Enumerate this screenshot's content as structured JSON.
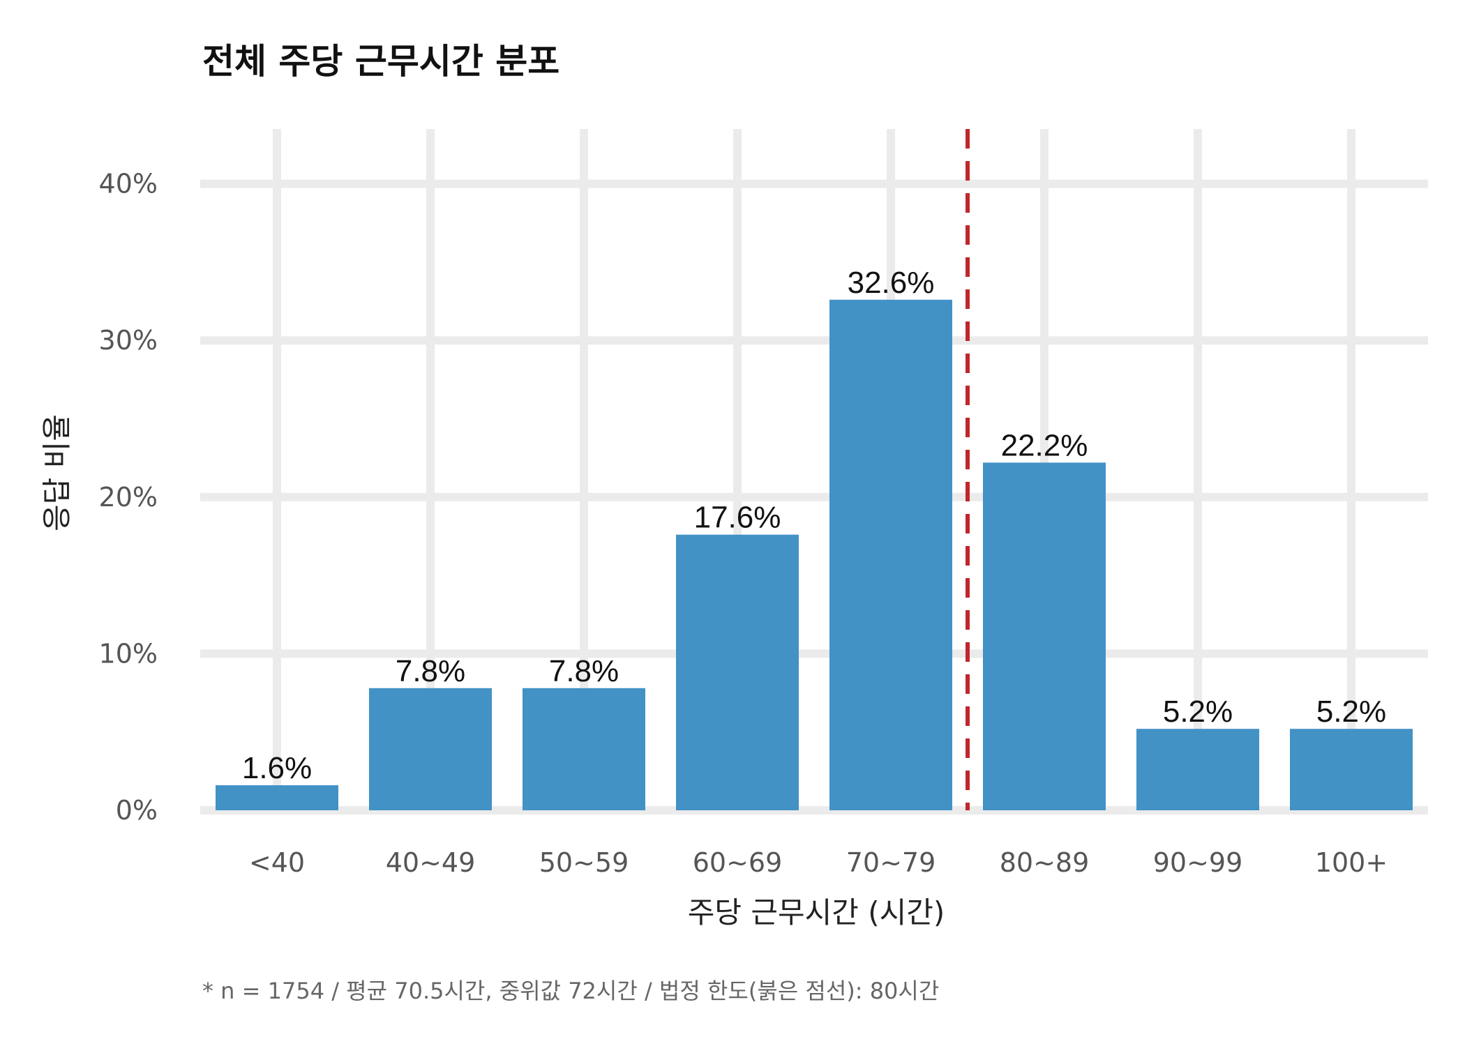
{
  "chart_data": {
    "type": "bar",
    "title": "전체 주당 근무시간 분포",
    "xlabel": "주당 근무시간 (시간)",
    "ylabel": "응답 비율",
    "categories": [
      "<40",
      "40~49",
      "50~59",
      "60~69",
      "70~79",
      "80~89",
      "90~99",
      "100+"
    ],
    "values": [
      1.6,
      7.8,
      7.8,
      17.6,
      32.6,
      22.2,
      5.2,
      5.2
    ],
    "value_labels": [
      "1.6%",
      "7.8%",
      "7.8%",
      "17.6%",
      "32.6%",
      "22.2%",
      "5.2%",
      "5.2%"
    ],
    "ylim": [
      0,
      43.5
    ],
    "yticks": [
      0,
      10,
      20,
      30,
      40
    ],
    "ytick_labels": [
      "0%",
      "10%",
      "20%",
      "30%",
      "40%"
    ],
    "reference_line": {
      "x": 80,
      "style": "dashed",
      "color": "#c0272d"
    },
    "bar_color": "#4292c6",
    "grid": true,
    "caption": "* n = 1754 / 평균 70.5시간, 중위값 72시간 / 법정 한도(붉은 점선): 80시간"
  }
}
